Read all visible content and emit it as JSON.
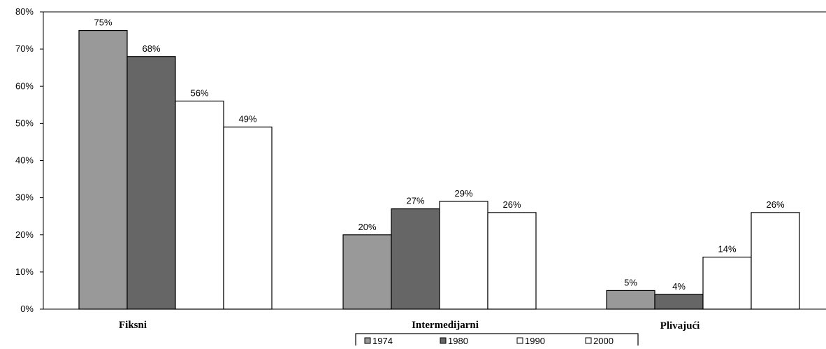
{
  "chart_data": {
    "type": "bar",
    "categories": [
      "Fiksni",
      "Intermedijarni",
      "Plivajući"
    ],
    "series": [
      {
        "name": "1974",
        "values": [
          75,
          20,
          5
        ],
        "labels": [
          "75%",
          "20%",
          "5%"
        ],
        "color": "#999999"
      },
      {
        "name": "1980",
        "values": [
          68,
          27,
          4
        ],
        "labels": [
          "68%",
          "27%",
          "4%"
        ],
        "color": "#666666"
      },
      {
        "name": "1990",
        "values": [
          56,
          29,
          14
        ],
        "labels": [
          "56%",
          "29%",
          "14%"
        ],
        "color": "#ffffff"
      },
      {
        "name": "2000",
        "values": [
          49,
          26,
          26
        ],
        "labels": [
          "49%",
          "26%",
          "26%"
        ],
        "color": "#ffffff"
      }
    ],
    "yticks": [
      "0%",
      "10%",
      "20%",
      "30%",
      "40%",
      "50%",
      "60%",
      "70%",
      "80%"
    ],
    "ylim": [
      0,
      80
    ],
    "grid": false,
    "legend_position": "bottom-center",
    "title": "",
    "xlabel": "",
    "ylabel": ""
  }
}
